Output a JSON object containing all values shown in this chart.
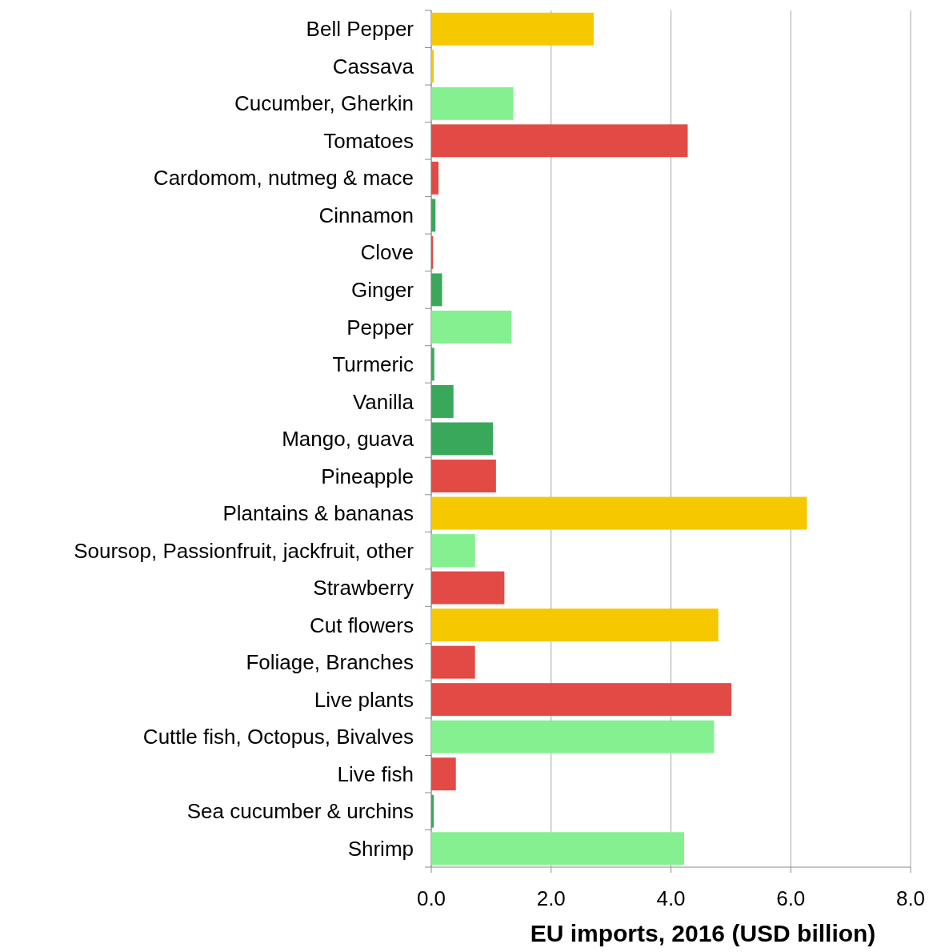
{
  "chart_data": {
    "type": "bar",
    "orientation": "horizontal",
    "xlabel": "EU imports, 2016 (USD billion)",
    "categories": [
      "Bell Pepper",
      "Cassava",
      "Cucumber, Gherkin",
      "Tomatoes",
      "Cardomom, nutmeg & mace",
      "Cinnamon",
      "Clove",
      "Ginger",
      "Pepper",
      "Turmeric",
      "Vanilla",
      "Mango, guava",
      "Pineapple",
      "Plantains & bananas",
      "Soursop,  Passionfruit,  jackfruit, other",
      "Strawberry",
      "Cut flowers",
      "Foliage, Branches",
      "Live plants",
      "Cuttle fish, Octopus, Bivalves",
      "Live fish",
      "Sea cucumber & urchins",
      "Shrimp"
    ],
    "values": [
      2.71,
      0.04,
      1.37,
      4.28,
      0.12,
      0.07,
      0.03,
      0.18,
      1.34,
      0.05,
      0.37,
      1.03,
      1.08,
      6.27,
      0.73,
      1.22,
      4.79,
      0.73,
      5.01,
      4.72,
      0.41,
      0.04,
      4.22
    ],
    "colors": [
      "#f5c800",
      "#f5c800",
      "#85f08f",
      "#e24a46",
      "#e24a46",
      "#3aa85a",
      "#e24a46",
      "#3aa85a",
      "#85f08f",
      "#3aa85a",
      "#3aa85a",
      "#3aa85a",
      "#e24a46",
      "#f5c800",
      "#85f08f",
      "#e24a46",
      "#f5c800",
      "#e24a46",
      "#e24a46",
      "#85f08f",
      "#e24a46",
      "#3aa85a",
      "#85f08f"
    ],
    "xlim": [
      0,
      8
    ],
    "xticks": [
      {
        "value": 0,
        "label": "0.0"
      },
      {
        "value": 2,
        "label": "2.0"
      },
      {
        "value": 4,
        "label": "4.0"
      },
      {
        "value": 6,
        "label": "6.0"
      },
      {
        "value": 8,
        "label": "8.0"
      }
    ],
    "grid": "x"
  }
}
